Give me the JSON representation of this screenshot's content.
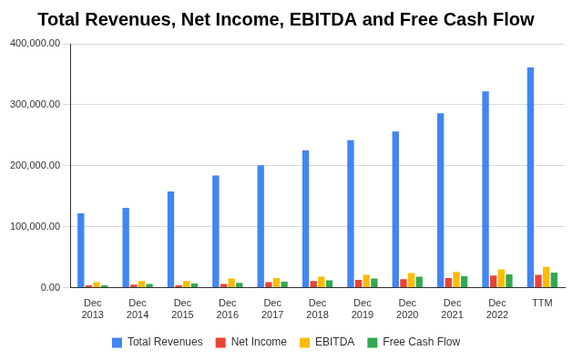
{
  "chart_data": {
    "type": "bar",
    "title": "Total Revenues, Net Income, EBITDA and Free Cash Flow",
    "categories": [
      "Dec 2013",
      "Dec 2014",
      "Dec 2015",
      "Dec 2016",
      "Dec 2017",
      "Dec 2018",
      "Dec 2019",
      "Dec 2020",
      "Dec 2021",
      "Dec 2022",
      "TTM"
    ],
    "series": [
      {
        "name": "Total Revenues",
        "color": "#4285f4",
        "values": [
          122000,
          131000,
          158000,
          184000,
          201000,
          225000,
          242000,
          256000,
          286000,
          322000,
          361000
        ]
      },
      {
        "name": "Net Income",
        "color": "#ea4335",
        "values": [
          4000,
          5000,
          4000,
          6000,
          9000,
          11000,
          13000,
          14000,
          16000,
          20000,
          21000
        ]
      },
      {
        "name": "EBITDA",
        "color": "#fbbc04",
        "values": [
          9000,
          11000,
          11000,
          15000,
          16000,
          18000,
          21000,
          24000,
          26000,
          30000,
          34000
        ]
      },
      {
        "name": "Free Cash Flow",
        "color": "#34a853",
        "values": [
          4000,
          6000,
          7000,
          8000,
          10000,
          12000,
          15000,
          18000,
          19000,
          22000,
          25000
        ]
      }
    ],
    "ylim": [
      0,
      400000
    ],
    "yticks": [
      {
        "value": 0,
        "label": "0.00"
      },
      {
        "value": 100000,
        "label": "100,000.00"
      },
      {
        "value": 200000,
        "label": "200,000.00"
      },
      {
        "value": 300000,
        "label": "300,000.00"
      },
      {
        "value": 400000,
        "label": "400,000.00"
      }
    ],
    "grid": true,
    "legend": "bottom"
  }
}
